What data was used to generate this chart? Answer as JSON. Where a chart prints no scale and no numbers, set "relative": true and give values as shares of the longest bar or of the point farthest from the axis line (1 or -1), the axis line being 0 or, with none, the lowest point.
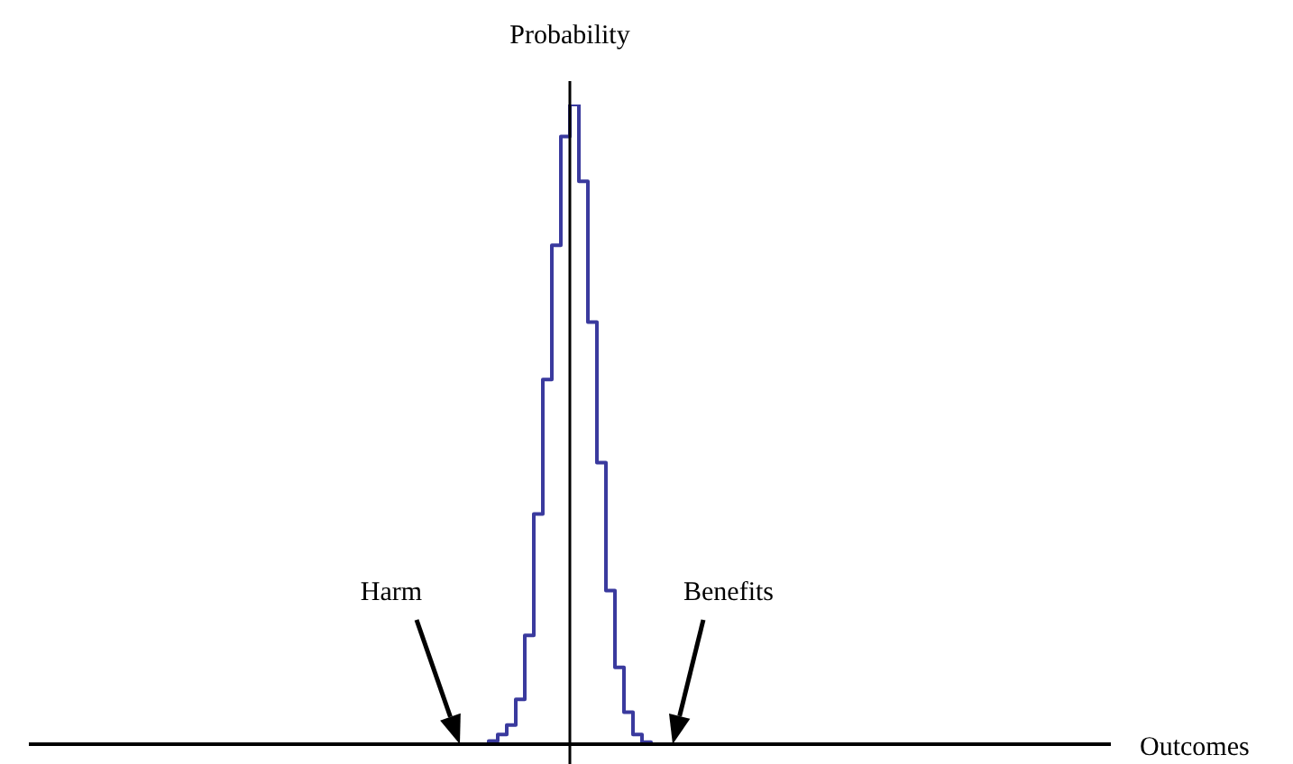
{
  "chart_data": {
    "type": "step",
    "relative": true,
    "xlabel": "Outcomes",
    "ylabel": "Probability",
    "annotations": [
      "Harm",
      "Benefits"
    ],
    "categories": [
      null,
      null,
      null,
      null,
      null,
      null,
      null,
      null,
      null,
      null,
      null,
      null,
      null,
      null,
      null,
      null,
      null,
      null,
      null,
      null,
      null,
      null,
      null,
      null,
      null,
      null,
      null,
      null,
      null,
      null,
      null,
      null,
      null,
      null,
      null,
      null,
      null,
      null,
      null,
      null,
      null,
      null,
      null,
      null,
      null,
      null,
      null,
      null,
      null,
      null,
      null,
      null,
      null,
      null,
      null,
      null,
      null,
      null,
      null,
      null,
      null,
      null,
      null,
      null,
      null,
      null,
      null,
      null,
      null,
      null,
      null,
      null,
      null,
      null,
      null,
      null,
      null,
      null,
      null,
      null,
      null,
      null,
      null,
      null,
      null,
      null,
      null,
      null,
      null,
      null,
      null,
      null,
      null,
      null,
      null,
      null,
      null,
      null,
      null,
      null,
      null,
      null,
      null,
      null,
      null,
      null,
      null,
      null,
      null,
      null,
      null,
      null,
      null,
      null,
      null,
      null,
      null,
      null,
      null,
      null,
      null
    ],
    "series": [
      {
        "color": "#3a3a9e",
        "values": [
          null,
          null,
          null,
          null,
          null,
          null,
          null,
          null,
          null,
          null,
          null,
          null,
          null,
          null,
          null,
          null,
          null,
          null,
          null,
          null,
          null,
          null,
          null,
          null,
          null,
          null,
          null,
          null,
          null,
          null,
          null,
          null,
          null,
          null,
          null,
          null,
          null,
          null,
          null,
          null,
          null,
          null,
          null,
          null,
          null,
          null,
          null,
          null,
          null,
          0,
          0,
          0.005,
          0.015,
          0.03,
          0.07,
          0.17,
          0.36,
          0.57,
          0.78,
          0.95,
          1,
          0.88,
          0.66,
          0.44,
          0.24,
          0.12,
          0.05,
          0.015,
          0.003,
          0,
          null,
          null,
          null,
          null,
          null,
          null,
          null,
          null,
          null,
          null,
          null,
          null,
          null,
          null,
          null,
          null,
          null,
          null,
          null,
          null,
          null,
          null,
          null,
          null,
          null,
          null,
          null,
          null,
          null,
          null,
          null,
          null,
          null,
          null,
          null,
          null,
          null,
          null,
          null,
          null,
          null,
          null,
          null,
          null,
          null,
          null,
          null,
          null,
          null,
          null,
          null
        ]
      }
    ]
  }
}
